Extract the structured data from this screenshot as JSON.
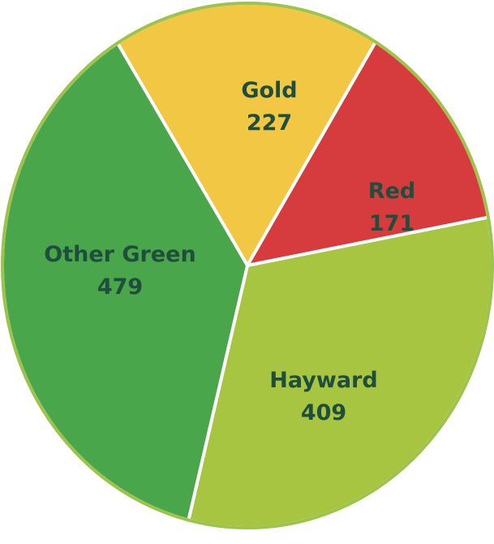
{
  "chart_data": {
    "type": "pie",
    "title": "",
    "slices": [
      {
        "label": "Gold",
        "value": 227,
        "color": "#f2c744"
      },
      {
        "label": "Red",
        "value": 171,
        "color": "#d63c3e"
      },
      {
        "label": "Hayward",
        "value": 409,
        "color": "#a7c540"
      },
      {
        "label": "Other Green",
        "value": 479,
        "color": "#4aa64a"
      }
    ],
    "border_color": "#9dc34a",
    "separator_color": "#ffffff",
    "label_color": "#1f4e3d"
  }
}
